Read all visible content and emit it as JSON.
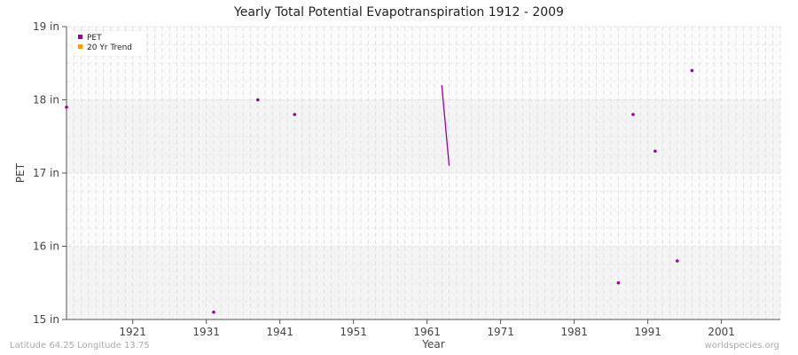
{
  "chart_data": {
    "type": "scatter",
    "title": "Yearly Total Potential Evapotranspiration 1912 - 2009",
    "xlabel": "Year",
    "ylabel": "PET",
    "xlim": [
      1912,
      2009
    ],
    "ylim": [
      15,
      19
    ],
    "x_ticks": [
      "1921",
      "1931",
      "1941",
      "1951",
      "1961",
      "1971",
      "1981",
      "1991",
      "2001"
    ],
    "y_ticks": [
      "15 in",
      "16 in",
      "17 in",
      "18 in",
      "19 in"
    ],
    "grid": true,
    "legend_position": "top-left",
    "legend": [
      {
        "name": "PET",
        "color": "#990099"
      },
      {
        "name": "20 Yr Trend",
        "color": "#ff9900"
      }
    ],
    "series": [
      {
        "name": "PET",
        "kind": "points",
        "color": "#990099",
        "points": [
          {
            "x": 1912,
            "y": 17.9
          },
          {
            "x": 1932,
            "y": 15.1
          },
          {
            "x": 1938,
            "y": 18.0
          },
          {
            "x": 1943,
            "y": 17.8
          },
          {
            "x": 1987,
            "y": 15.5
          },
          {
            "x": 1989,
            "y": 17.8
          },
          {
            "x": 1992,
            "y": 17.3
          },
          {
            "x": 1995,
            "y": 15.8
          },
          {
            "x": 1997,
            "y": 18.4
          }
        ]
      },
      {
        "name": "PET",
        "kind": "line",
        "color": "#990099",
        "points": [
          {
            "x": 1963,
            "y": 18.2
          },
          {
            "x": 1964,
            "y": 17.1
          }
        ]
      }
    ]
  },
  "footer": {
    "location": "Latitude 64.25 Longitude 13.75",
    "source": "worldspecies.org"
  }
}
